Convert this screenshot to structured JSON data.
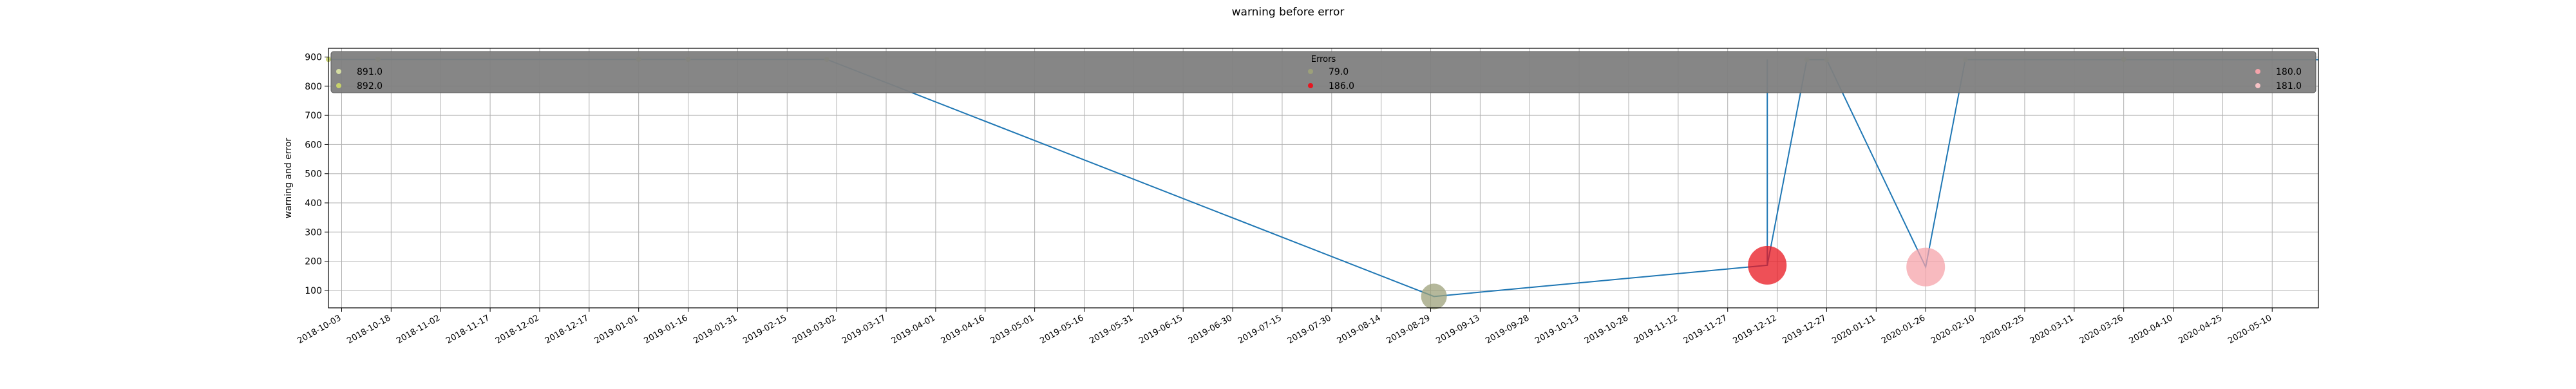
{
  "chart_data": {
    "type": "scatter",
    "title": "warning before error",
    "xlabel": "",
    "ylabel": "warning and error",
    "xlim": [
      "2018-09-29",
      "2020-05-24"
    ],
    "ylim": [
      40,
      930
    ],
    "grid": true,
    "x_ticks": [
      "2018-10-03",
      "2018-10-18",
      "2018-11-02",
      "2018-11-17",
      "2018-12-02",
      "2018-12-17",
      "2019-01-01",
      "2019-01-16",
      "2019-01-31",
      "2019-02-15",
      "2019-03-02",
      "2019-03-17",
      "2019-04-01",
      "2019-04-16",
      "2019-05-01",
      "2019-05-16",
      "2019-05-31",
      "2019-06-15",
      "2019-06-30",
      "2019-07-15",
      "2019-07-30",
      "2019-08-14",
      "2019-08-29",
      "2019-09-13",
      "2019-09-28",
      "2019-10-13",
      "2019-10-28",
      "2019-11-12",
      "2019-11-27",
      "2019-12-12",
      "2019-12-27",
      "2020-01-11",
      "2020-01-26",
      "2020-02-10",
      "2020-02-25",
      "2020-03-11",
      "2020-03-26",
      "2020-04-10",
      "2020-04-25",
      "2020-05-10"
    ],
    "y_ticks": [
      100,
      200,
      300,
      400,
      500,
      600,
      700,
      800,
      900
    ],
    "line": {
      "color": "#1f77b4",
      "points": [
        {
          "x": "2018-09-29",
          "y": 892
        },
        {
          "x": "2019-02-27",
          "y": 892
        },
        {
          "x": "2019-08-30",
          "y": 79
        },
        {
          "x": "2019-12-09",
          "y": 186
        },
        {
          "x": "2019-12-09",
          "y": 892
        },
        {
          "x": "2019-12-09",
          "y": 186
        },
        {
          "x": "2019-12-21",
          "y": 891
        },
        {
          "x": "2019-12-27",
          "y": 891
        },
        {
          "x": "2020-01-26",
          "y": 180
        },
        {
          "x": "2020-02-07",
          "y": 891
        },
        {
          "x": "2020-05-24",
          "y": 891
        }
      ]
    },
    "series": [
      {
        "name": "891.0",
        "color": "#d4dca2",
        "points": [
          {
            "x": "2019-12-21",
            "y": 891
          },
          {
            "x": "2019-12-27",
            "y": 891
          },
          {
            "x": "2020-02-07",
            "y": 891
          }
        ]
      },
      {
        "name": "892.0",
        "color": "#c7d26a",
        "points": [
          {
            "x": "2018-09-29",
            "y": 892
          },
          {
            "x": "2018-10-14",
            "y": 892
          },
          {
            "x": "2019-01-01",
            "y": 892
          },
          {
            "x": "2019-01-16",
            "y": 892
          },
          {
            "x": "2019-02-27",
            "y": 892
          },
          {
            "x": "2020-03-26",
            "y": 892
          }
        ]
      },
      {
        "name": "79.0",
        "color": "#9ca07a",
        "size": "large",
        "points": [
          {
            "x": "2019-08-30",
            "y": 79
          }
        ]
      },
      {
        "name": "186.0",
        "color": "#e8151f",
        "size": "xlarge",
        "points": [
          {
            "x": "2019-12-09",
            "y": 186
          }
        ]
      },
      {
        "name": "180.0",
        "color": "#f5a3aa",
        "size": "xlarge",
        "points": [
          {
            "x": "2020-01-26",
            "y": 180
          }
        ]
      },
      {
        "name": "181.0",
        "color": "#f6c2c5",
        "points": []
      }
    ],
    "legend": {
      "title": "Errors",
      "placement": "top",
      "columns": [
        [
          {
            "label": "891.0",
            "color": "#d4dca2"
          },
          {
            "label": "892.0",
            "color": "#c7d26a"
          }
        ],
        [
          {
            "label": "79.0",
            "color": "#9ca07a"
          },
          {
            "label": "186.0",
            "color": "#e8151f"
          }
        ],
        [
          {
            "label": "180.0",
            "color": "#f5a3aa"
          },
          {
            "label": "181.0",
            "color": "#f6c2c5"
          }
        ]
      ]
    }
  }
}
